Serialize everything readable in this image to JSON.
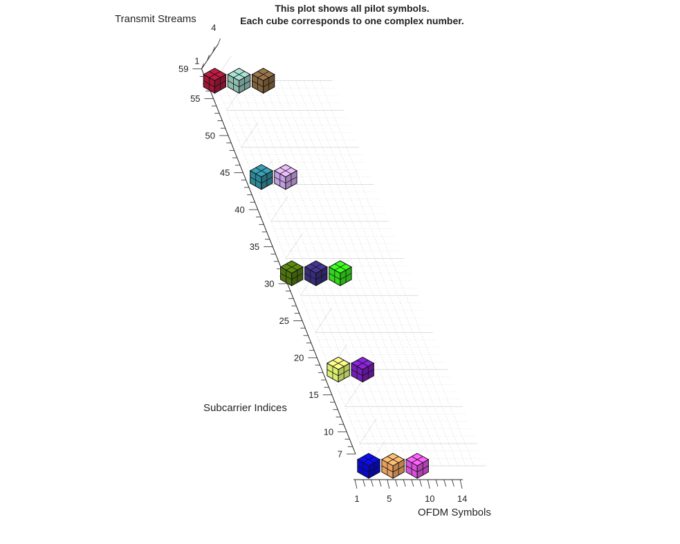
{
  "chart_data": {
    "type": "scatter3d",
    "title": [
      "This plot shows all pilot symbols.",
      "Each cube corresponds to one complex number."
    ],
    "x_label": "OFDM Symbols",
    "y_label": "Subcarrier Indices",
    "z_label": "Transmit Streams",
    "x_ticks": [
      "1",
      "5",
      "10",
      "14"
    ],
    "y_ticks": [
      "7",
      "10",
      "15",
      "20",
      "25",
      "30",
      "35",
      "40",
      "45",
      "50",
      "55",
      "59"
    ],
    "z_ticks": [
      "1",
      "4"
    ],
    "x_range": [
      1,
      14
    ],
    "y_range": [
      7,
      59
    ],
    "z_range": [
      1,
      4
    ],
    "grid": true,
    "cubes": [
      {
        "ofdm_symbol": 1,
        "subcarrier": 59,
        "color": "#a8173a"
      },
      {
        "ofdm_symbol": 4,
        "subcarrier": 59,
        "color": "#94c6b8"
      },
      {
        "ofdm_symbol": 7,
        "subcarrier": 59,
        "color": "#86663e"
      },
      {
        "ofdm_symbol": 2,
        "subcarrier": 46,
        "color": "#2f8d9e"
      },
      {
        "ofdm_symbol": 5,
        "subcarrier": 46,
        "color": "#cda6ef"
      },
      {
        "ofdm_symbol": 1,
        "subcarrier": 33,
        "color": "#50780e"
      },
      {
        "ofdm_symbol": 4,
        "subcarrier": 33,
        "color": "#3b2f80"
      },
      {
        "ofdm_symbol": 7,
        "subcarrier": 33,
        "color": "#35e11b"
      },
      {
        "ofdm_symbol": 2,
        "subcarrier": 20,
        "color": "#e5fc75"
      },
      {
        "ofdm_symbol": 5,
        "subcarrier": 20,
        "color": "#7b1ec2"
      },
      {
        "ofdm_symbol": 1,
        "subcarrier": 7,
        "color": "#0a0ad8"
      },
      {
        "ofdm_symbol": 4,
        "subcarrier": 7,
        "color": "#f4a664"
      },
      {
        "ofdm_symbol": 7,
        "subcarrier": 7,
        "color": "#e455e6"
      }
    ]
  }
}
